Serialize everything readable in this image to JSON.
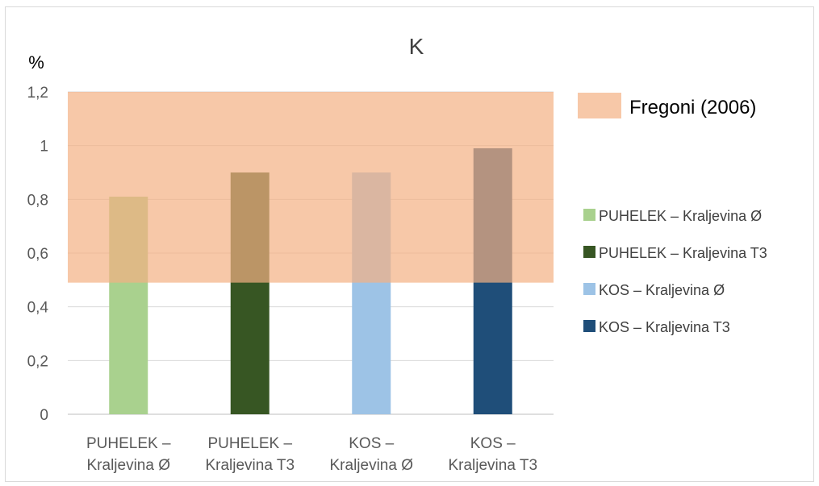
{
  "chart_data": {
    "type": "bar",
    "title": "K",
    "ylabel": "%",
    "ylim": [
      0,
      1.2
    ],
    "yticks": [
      0,
      0.2,
      0.4,
      0.6,
      0.8,
      1,
      1.2
    ],
    "ytick_labels": [
      "0",
      "0,2",
      "0,4",
      "0,6",
      "0,8",
      "1",
      "1,2"
    ],
    "grid": true,
    "categories": [
      "PUHELEK – Kraljevina Ø",
      "PUHELEK – Kraljevina T3",
      "KOS – Kraljevina Ø",
      "KOS – Kraljevina T3"
    ],
    "category_lines": [
      [
        "PUHELEK –",
        "Kraljevina Ø"
      ],
      [
        "PUHELEK –",
        "Kraljevina T3"
      ],
      [
        "KOS –",
        "Kraljevina Ø"
      ],
      [
        "KOS –",
        "Kraljevina T3"
      ]
    ],
    "values": [
      0.81,
      0.9,
      0.9,
      0.99
    ],
    "colors": [
      "#a9d18e",
      "#375623",
      "#9dc3e6",
      "#1f4e79"
    ],
    "reference_band": {
      "name": "Fregoni (2006)",
      "range": [
        0.49,
        1.2
      ],
      "color": "#f4b183",
      "opacity": 0.7
    },
    "legend_position": "right",
    "legend": [
      {
        "label": "PUHELEK – Kraljevina Ø",
        "color": "#a9d18e"
      },
      {
        "label": "PUHELEK – Kraljevina T3",
        "color": "#375623"
      },
      {
        "label": "KOS – Kraljevina Ø",
        "color": "#9dc3e6"
      },
      {
        "label": "KOS – Kraljevina T3",
        "color": "#1f4e79"
      }
    ]
  }
}
